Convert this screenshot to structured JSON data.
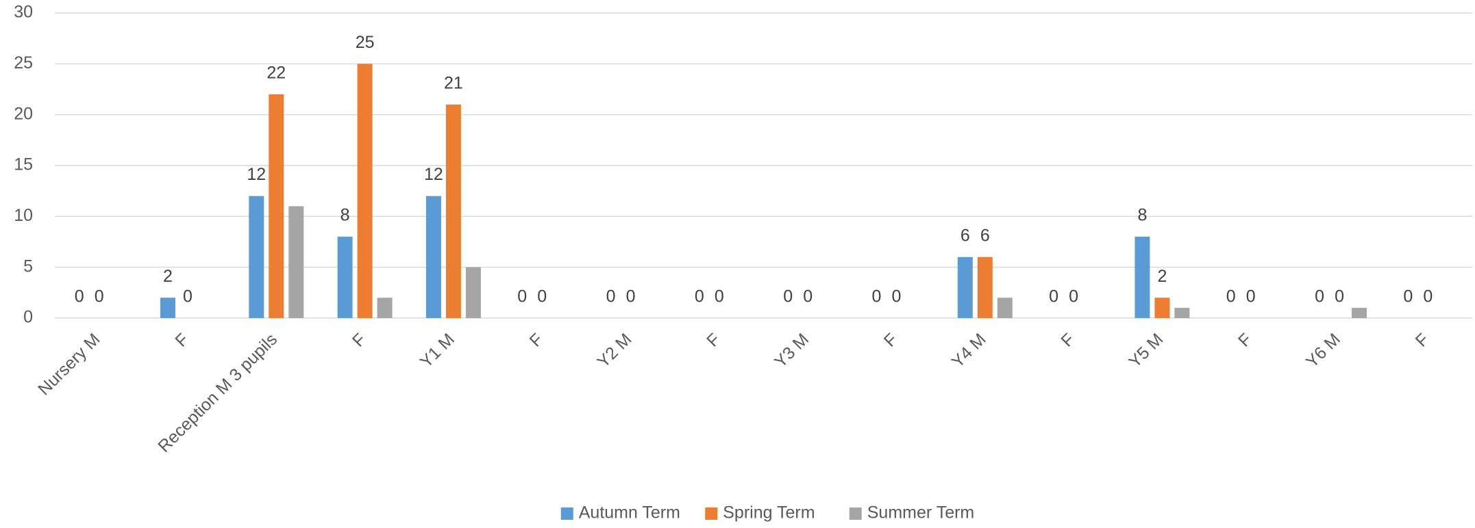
{
  "chart_data": {
    "type": "bar",
    "categories": [
      "Nursery M",
      "F",
      "Reception M 3 pupils",
      "F",
      "Y1 M",
      "F",
      "Y2 M",
      "F",
      "Y3 M",
      "F",
      "Y4 M",
      "F",
      "Y5 M",
      "F",
      "Y6 M",
      "F"
    ],
    "series": [
      {
        "name": "Autumn Term",
        "color": "#5b9bd5",
        "data_labels": true,
        "values": [
          0,
          2,
          12,
          8,
          12,
          0,
          0,
          0,
          0,
          0,
          6,
          0,
          8,
          0,
          0,
          0
        ]
      },
      {
        "name": "Spring Term",
        "color": "#ed7d31",
        "data_labels": true,
        "values": [
          0,
          0,
          22,
          25,
          21,
          0,
          0,
          0,
          0,
          0,
          6,
          0,
          2,
          0,
          0,
          0
        ]
      },
      {
        "name": "Summer Term",
        "color": "#a5a5a5",
        "data_labels": false,
        "values": [
          0,
          0,
          11,
          2,
          5,
          0,
          0,
          0,
          0,
          0,
          2,
          0,
          1,
          0,
          1,
          0
        ]
      }
    ],
    "ylim": [
      0,
      30
    ],
    "yticks": [
      0,
      5,
      10,
      15,
      20,
      25,
      30
    ],
    "grid": true,
    "legend": "bottom"
  }
}
